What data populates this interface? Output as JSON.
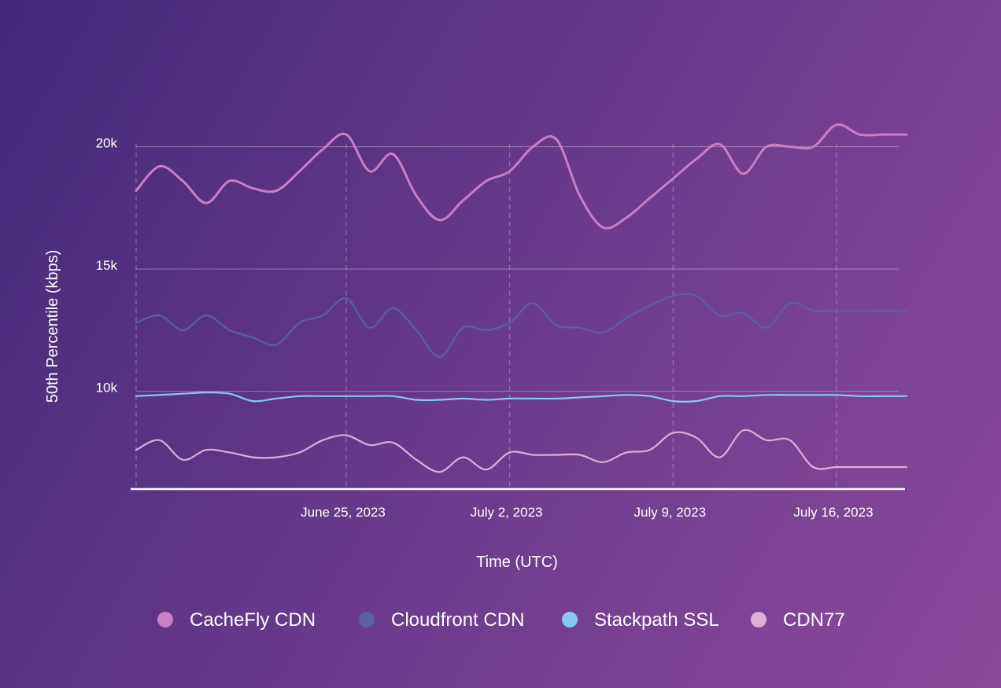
{
  "chart_data": {
    "type": "line",
    "title": "",
    "xlabel": "Time (UTC)",
    "ylabel": "50th Percentile (kbps)",
    "x_axis_type": "date",
    "xlim": [
      "2023-06-16",
      "2023-07-19"
    ],
    "ylim": [
      6000,
      21500
    ],
    "y_ticks": [
      {
        "value": 10000,
        "label": "10k"
      },
      {
        "value": 15000,
        "label": "15k"
      },
      {
        "value": 20000,
        "label": "20k"
      }
    ],
    "x_ticks": [
      {
        "value": "2023-06-25",
        "label": "June 25, 2023"
      },
      {
        "value": "2023-07-02",
        "label": "July 2, 2023"
      },
      {
        "value": "2023-07-09",
        "label": "July 9, 2023"
      },
      {
        "value": "2023-07-16",
        "label": "July 16, 2023"
      }
    ],
    "grid": {
      "horizontal": true,
      "vertical_dashed": true
    },
    "legend_position": "bottom-center",
    "x": [
      "2023-06-16",
      "2023-06-17",
      "2023-06-18",
      "2023-06-19",
      "2023-06-20",
      "2023-06-21",
      "2023-06-22",
      "2023-06-23",
      "2023-06-24",
      "2023-06-25",
      "2023-06-26",
      "2023-06-27",
      "2023-06-28",
      "2023-06-29",
      "2023-06-30",
      "2023-07-01",
      "2023-07-02",
      "2023-07-03",
      "2023-07-04",
      "2023-07-05",
      "2023-07-06",
      "2023-07-07",
      "2023-07-08",
      "2023-07-09",
      "2023-07-10",
      "2023-07-11",
      "2023-07-12",
      "2023-07-13",
      "2023-07-14",
      "2023-07-15",
      "2023-07-16",
      "2023-07-17",
      "2023-07-18",
      "2023-07-19"
    ],
    "series": [
      {
        "name": "CacheFly CDN",
        "color": "#c97fc5",
        "values": [
          18200,
          19200,
          18600,
          17700,
          18600,
          18300,
          18200,
          19000,
          19900,
          20500,
          19000,
          19700,
          18000,
          17000,
          17800,
          18600,
          19000,
          20000,
          20300,
          18000,
          16700,
          17100,
          17900,
          18700,
          19500,
          20100,
          18900,
          20000,
          20000,
          20000,
          20900,
          20500,
          20500,
          20500
        ]
      },
      {
        "name": "Cloudfront CDN",
        "color": "#5a5fa6",
        "values": [
          12800,
          13100,
          12500,
          13100,
          12500,
          12200,
          11900,
          12800,
          13100,
          13800,
          12600,
          13400,
          12500,
          11400,
          12600,
          12500,
          12800,
          13600,
          12700,
          12600,
          12400,
          13000,
          13500,
          13900,
          13900,
          13100,
          13200,
          12600,
          13600,
          13300,
          13300,
          13300,
          13300,
          13300
        ]
      },
      {
        "name": "Stackpath SSL",
        "color": "#86c9f0",
        "values": [
          9800,
          9850,
          9900,
          9950,
          9900,
          9600,
          9700,
          9800,
          9800,
          9800,
          9800,
          9800,
          9650,
          9650,
          9700,
          9650,
          9700,
          9700,
          9700,
          9750,
          9800,
          9850,
          9800,
          9600,
          9600,
          9800,
          9800,
          9850,
          9850,
          9850,
          9850,
          9800,
          9800,
          9800
        ]
      },
      {
        "name": "CDN77",
        "color": "#dcaed8",
        "values": [
          7600,
          8000,
          7200,
          7600,
          7500,
          7300,
          7300,
          7500,
          8000,
          8200,
          7800,
          7900,
          7200,
          6700,
          7300,
          6800,
          7500,
          7400,
          7400,
          7400,
          7100,
          7500,
          7600,
          8300,
          8100,
          7300,
          8400,
          8000,
          8000,
          6900,
          6900,
          6900,
          6900,
          6900
        ]
      }
    ]
  }
}
